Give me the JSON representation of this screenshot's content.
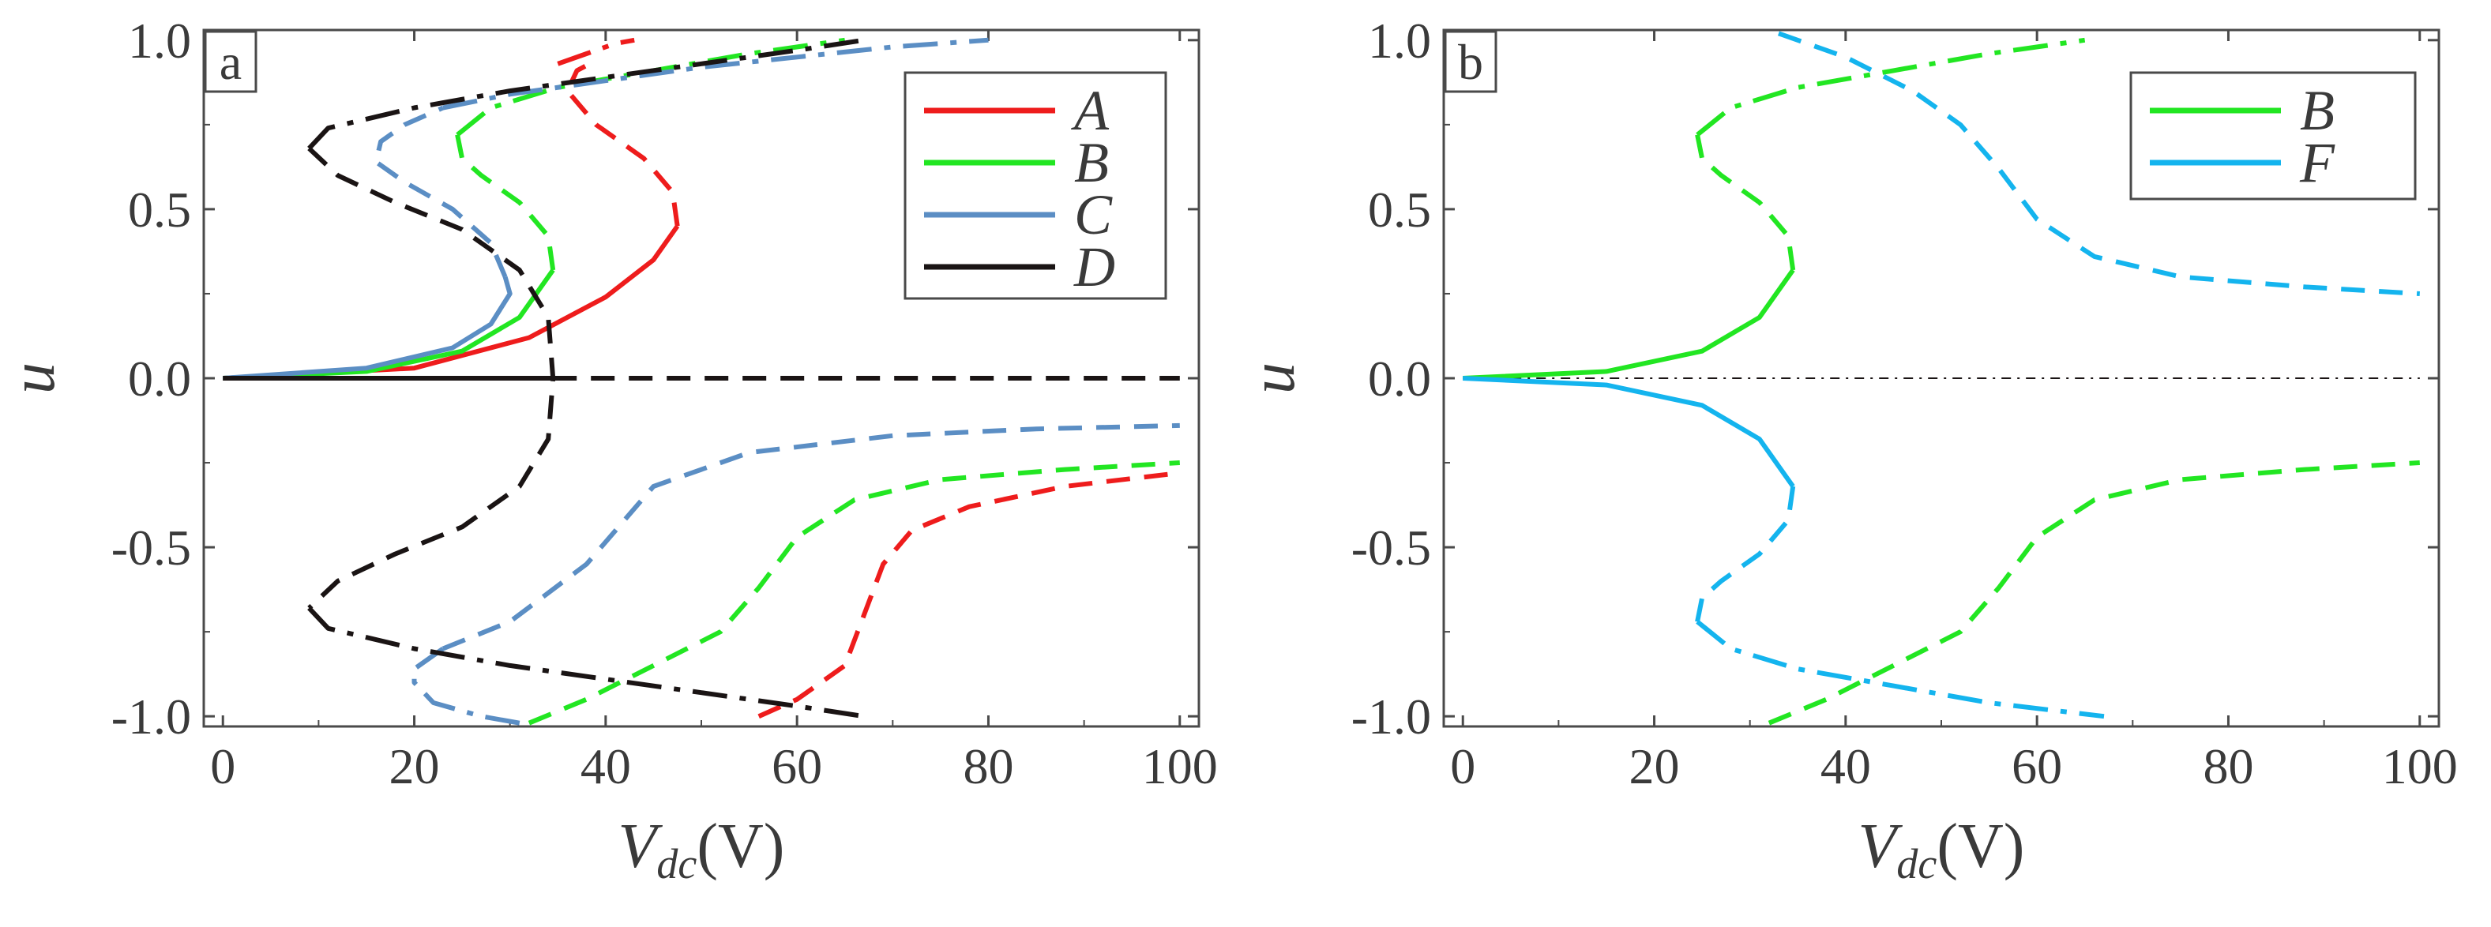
{
  "chart_data": [
    {
      "type": "line",
      "panel_label": "a",
      "xlabel": {
        "main": "V",
        "sub": "dc",
        "unit": "(V)"
      },
      "ylabel": "u",
      "xlim": [
        -2,
        102
      ],
      "ylim": [
        -1.03,
        1.03
      ],
      "xticks": [
        0,
        20,
        40,
        60,
        80,
        100
      ],
      "xtick_labels": [
        "0",
        "20",
        "40",
        "60",
        "80",
        "100"
      ],
      "yticks": [
        1.0,
        0.5,
        0.0,
        -0.5,
        -1.0
      ],
      "ytick_labels": [
        "1.0",
        "0.5",
        "0.0",
        "-0.5",
        "-1.0"
      ],
      "legend_position": "top-right",
      "legend": [
        {
          "name": "A",
          "color": "#ee1c1c"
        },
        {
          "name": "B",
          "color": "#22e622"
        },
        {
          "name": "C",
          "color": "#5b8ec4"
        },
        {
          "name": "D",
          "color": "#1a1414"
        }
      ],
      "series": [
        {
          "name": "A",
          "color": "#ee1c1c",
          "style": "solid",
          "points": [
            [
              0,
              0
            ],
            [
              20,
              0.03
            ],
            [
              32,
              0.12
            ],
            [
              40,
              0.24
            ],
            [
              45,
              0.35
            ],
            [
              47.5,
              0.45
            ]
          ]
        },
        {
          "name": "A",
          "color": "#ee1c1c",
          "style": "dashed",
          "points": [
            [
              47.5,
              0.45
            ],
            [
              47,
              0.55
            ],
            [
              44,
              0.65
            ],
            [
              39,
              0.75
            ],
            [
              36,
              0.85
            ],
            [
              37,
              0.91
            ],
            [
              39,
              0.94
            ]
          ]
        },
        {
          "name": "A",
          "color": "#ee1c1c",
          "style": "dashdot",
          "points": [
            [
              35,
              0.93
            ],
            [
              38,
              0.96
            ],
            [
              41,
              0.99
            ],
            [
              43,
              1.0
            ]
          ]
        },
        {
          "name": "A",
          "color": "#ee1c1c",
          "style": "dashed",
          "points": [
            [
              56,
              -1.0
            ],
            [
              60,
              -0.95
            ],
            [
              65,
              -0.85
            ],
            [
              67,
              -0.7
            ],
            [
              69,
              -0.55
            ],
            [
              72,
              -0.45
            ],
            [
              78,
              -0.38
            ],
            [
              88,
              -0.32
            ],
            [
              100,
              -0.28
            ]
          ]
        },
        {
          "name": "B",
          "color": "#22e622",
          "style": "solid",
          "points": [
            [
              0,
              0
            ],
            [
              15,
              0.02
            ],
            [
              25,
              0.08
            ],
            [
              31,
              0.18
            ],
            [
              34.5,
              0.32
            ]
          ]
        },
        {
          "name": "B",
          "color": "#22e622",
          "style": "dashed",
          "points": [
            [
              34.5,
              0.32
            ],
            [
              34,
              0.42
            ],
            [
              31,
              0.52
            ],
            [
              27,
              0.6
            ],
            [
              25,
              0.65
            ],
            [
              24.5,
              0.72
            ]
          ]
        },
        {
          "name": "B",
          "color": "#22e622",
          "style": "dashdot",
          "points": [
            [
              24.5,
              0.72
            ],
            [
              28,
              0.8
            ],
            [
              35,
              0.86
            ],
            [
              45,
              0.91
            ],
            [
              55,
              0.96
            ],
            [
              65,
              1.0
            ]
          ]
        },
        {
          "name": "B",
          "color": "#22e622",
          "style": "dashed",
          "points": [
            [
              32,
              -1.02
            ],
            [
              38,
              -0.95
            ],
            [
              45,
              -0.85
            ],
            [
              52,
              -0.75
            ],
            [
              56,
              -0.62
            ],
            [
              60,
              -0.47
            ],
            [
              66,
              -0.36
            ],
            [
              75,
              -0.3
            ],
            [
              88,
              -0.27
            ],
            [
              100,
              -0.25
            ]
          ]
        },
        {
          "name": "C",
          "color": "#5b8ec4",
          "style": "solid",
          "points": [
            [
              0,
              0
            ],
            [
              15,
              0.03
            ],
            [
              24,
              0.09
            ],
            [
              28,
              0.16
            ],
            [
              30,
              0.25
            ],
            [
              29.5,
              0.3
            ]
          ]
        },
        {
          "name": "C",
          "color": "#5b8ec4",
          "style": "dashed",
          "points": [
            [
              29.5,
              0.3
            ],
            [
              28,
              0.4
            ],
            [
              24,
              0.5
            ],
            [
              19,
              0.58
            ],
            [
              16,
              0.64
            ],
            [
              16.5,
              0.7
            ],
            [
              19,
              0.75
            ],
            [
              23,
              0.8
            ]
          ]
        },
        {
          "name": "C",
          "color": "#5b8ec4",
          "style": "dashdot",
          "points": [
            [
              23,
              0.8
            ],
            [
              30,
              0.84
            ],
            [
              40,
              0.88
            ],
            [
              50,
              0.92
            ],
            [
              60,
              0.95
            ],
            [
              70,
              0.98
            ],
            [
              80,
              1.0
            ]
          ]
        },
        {
          "name": "C",
          "color": "#5b8ec4",
          "style": "dashdot",
          "points": [
            [
              31,
              -1.02
            ],
            [
              27,
              -1.0
            ],
            [
              22,
              -0.96
            ],
            [
              20,
              -0.9
            ],
            [
              20,
              -0.86
            ],
            [
              23,
              -0.8
            ]
          ]
        },
        {
          "name": "C",
          "color": "#5b8ec4",
          "style": "dashed",
          "points": [
            [
              23,
              -0.8
            ],
            [
              30,
              -0.72
            ],
            [
              38,
              -0.55
            ],
            [
              45,
              -0.32
            ],
            [
              55,
              -0.22
            ],
            [
              70,
              -0.17
            ],
            [
              85,
              -0.15
            ],
            [
              100,
              -0.14
            ]
          ]
        },
        {
          "name": "D",
          "color": "#1a1414",
          "style": "solid",
          "points": [
            [
              0,
              0
            ],
            [
              34.5,
              0
            ]
          ]
        },
        {
          "name": "D",
          "color": "#1a1414",
          "style": "dashed",
          "points": [
            [
              34.5,
              0
            ],
            [
              100,
              0
            ]
          ]
        },
        {
          "name": "D",
          "color": "#1a1414",
          "style": "dashed",
          "points": [
            [
              9,
              0.68
            ],
            [
              12,
              0.6
            ],
            [
              18,
              0.52
            ],
            [
              25,
              0.44
            ],
            [
              31,
              0.32
            ],
            [
              34,
              0.18
            ],
            [
              34.5,
              0
            ],
            [
              34,
              -0.18
            ],
            [
              31,
              -0.32
            ],
            [
              25,
              -0.44
            ],
            [
              18,
              -0.52
            ],
            [
              12,
              -0.6
            ],
            [
              9,
              -0.68
            ]
          ]
        },
        {
          "name": "D",
          "color": "#1a1414",
          "style": "dashdot",
          "points": [
            [
              9,
              0.68
            ],
            [
              11,
              0.74
            ],
            [
              20,
              0.8
            ],
            [
              30,
              0.85
            ],
            [
              40,
              0.89
            ],
            [
              50,
              0.93
            ],
            [
              60,
              0.97
            ],
            [
              67,
              1.0
            ]
          ]
        },
        {
          "name": "D",
          "color": "#1a1414",
          "style": "dashdot",
          "points": [
            [
              9,
              -0.68
            ],
            [
              11,
              -0.74
            ],
            [
              20,
              -0.8
            ],
            [
              30,
              -0.85
            ],
            [
              40,
              -0.89
            ],
            [
              50,
              -0.93
            ],
            [
              60,
              -0.97
            ],
            [
              67,
              -1.0
            ]
          ]
        }
      ]
    },
    {
      "type": "line",
      "panel_label": "b",
      "xlabel": {
        "main": "V",
        "sub": "dc",
        "unit": "(V)"
      },
      "ylabel": "u",
      "xlim": [
        -2,
        102
      ],
      "ylim": [
        -1.03,
        1.03
      ],
      "xticks": [
        0,
        20,
        40,
        60,
        80,
        100
      ],
      "xtick_labels": [
        "0",
        "20",
        "40",
        "60",
        "80",
        "100"
      ],
      "yticks": [
        1.0,
        0.5,
        0.0,
        -0.5,
        -1.0
      ],
      "ytick_labels": [
        "1.0",
        "0.5",
        "0.0",
        "-0.5",
        "-1.0"
      ],
      "legend_position": "top-right",
      "legend": [
        {
          "name": "B",
          "color": "#22e622"
        },
        {
          "name": "F",
          "color": "#14b4ee"
        }
      ],
      "series": [
        {
          "name": "zero",
          "color": "#1a1414",
          "style": "thin-dashdot",
          "points": [
            [
              0,
              0
            ],
            [
              100,
              0
            ]
          ]
        },
        {
          "name": "B",
          "color": "#22e622",
          "style": "solid",
          "points": [
            [
              0,
              0
            ],
            [
              15,
              0.02
            ],
            [
              25,
              0.08
            ],
            [
              31,
              0.18
            ],
            [
              34.5,
              0.32
            ]
          ]
        },
        {
          "name": "B",
          "color": "#22e622",
          "style": "dashed",
          "points": [
            [
              34.5,
              0.32
            ],
            [
              34,
              0.42
            ],
            [
              31,
              0.52
            ],
            [
              27,
              0.6
            ],
            [
              25,
              0.65
            ],
            [
              24.5,
              0.72
            ]
          ]
        },
        {
          "name": "B",
          "color": "#22e622",
          "style": "dashdot",
          "points": [
            [
              24.5,
              0.72
            ],
            [
              28,
              0.8
            ],
            [
              35,
              0.86
            ],
            [
              45,
              0.91
            ],
            [
              55,
              0.96
            ],
            [
              65,
              1.0
            ]
          ]
        },
        {
          "name": "B",
          "color": "#22e622",
          "style": "dashed",
          "points": [
            [
              32,
              -1.02
            ],
            [
              38,
              -0.95
            ],
            [
              45,
              -0.85
            ],
            [
              52,
              -0.75
            ],
            [
              56,
              -0.62
            ],
            [
              60,
              -0.47
            ],
            [
              66,
              -0.36
            ],
            [
              75,
              -0.3
            ],
            [
              88,
              -0.27
            ],
            [
              100,
              -0.25
            ]
          ]
        },
        {
          "name": "F",
          "color": "#14b4ee",
          "style": "solid",
          "points": [
            [
              0,
              0
            ],
            [
              15,
              -0.02
            ],
            [
              25,
              -0.08
            ],
            [
              31,
              -0.18
            ],
            [
              34.5,
              -0.32
            ]
          ]
        },
        {
          "name": "F",
          "color": "#14b4ee",
          "style": "dashed",
          "points": [
            [
              34.5,
              -0.32
            ],
            [
              34,
              -0.42
            ],
            [
              31,
              -0.52
            ],
            [
              27,
              -0.6
            ],
            [
              25,
              -0.65
            ],
            [
              24.5,
              -0.72
            ]
          ]
        },
        {
          "name": "F",
          "color": "#14b4ee",
          "style": "dashdot",
          "points": [
            [
              24.5,
              -0.72
            ],
            [
              28,
              -0.8
            ],
            [
              35,
              -0.86
            ],
            [
              45,
              -0.91
            ],
            [
              55,
              -0.96
            ],
            [
              67,
              -1.0
            ]
          ]
        },
        {
          "name": "F",
          "color": "#14b4ee",
          "style": "dashed",
          "points": [
            [
              33,
              1.02
            ],
            [
              40,
              0.95
            ],
            [
              47,
              0.85
            ],
            [
              52,
              0.75
            ],
            [
              56,
              0.62
            ],
            [
              60,
              0.47
            ],
            [
              66,
              0.36
            ],
            [
              75,
              0.3
            ],
            [
              88,
              0.27
            ],
            [
              100,
              0.25
            ]
          ]
        }
      ]
    }
  ]
}
